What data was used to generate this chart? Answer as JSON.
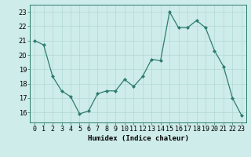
{
  "x": [
    0,
    1,
    2,
    3,
    4,
    5,
    6,
    7,
    8,
    9,
    10,
    11,
    12,
    13,
    14,
    15,
    16,
    17,
    18,
    19,
    20,
    21,
    22,
    23
  ],
  "y": [
    21.0,
    20.7,
    18.5,
    17.5,
    17.1,
    15.9,
    16.1,
    17.3,
    17.5,
    17.5,
    18.3,
    17.8,
    18.5,
    19.7,
    19.6,
    23.0,
    21.9,
    21.9,
    22.4,
    21.9,
    20.3,
    19.2,
    17.0,
    15.8
  ],
  "line_color": "#2e7d6e",
  "marker": "D",
  "marker_size": 2.0,
  "bg_color": "#ceecea",
  "grid_color": "#b2d8d4",
  "xlabel": "Humidex (Indice chaleur)",
  "ylim": [
    15.3,
    23.5
  ],
  "xlim": [
    -0.5,
    23.5
  ],
  "yticks": [
    16,
    17,
    18,
    19,
    20,
    21,
    22,
    23
  ],
  "xtick_labels": [
    "0",
    "1",
    "2",
    "3",
    "4",
    "5",
    "6",
    "7",
    "8",
    "9",
    "10",
    "11",
    "12",
    "13",
    "14",
    "15",
    "16",
    "17",
    "18",
    "19",
    "20",
    "21",
    "22",
    "23"
  ],
  "label_fontsize": 6.5,
  "tick_fontsize": 6.0
}
